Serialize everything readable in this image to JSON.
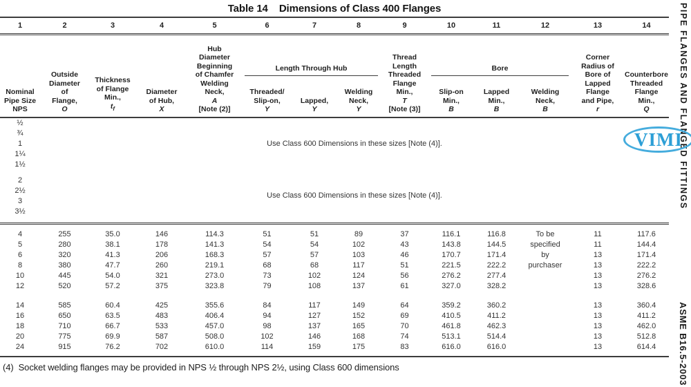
{
  "title": {
    "part1": "Table 14",
    "part2": "Dimensions of Class 400 Flanges"
  },
  "sidebar": {
    "top_text": "PIPE FLANGES AND FLANGED FITTINGS",
    "bottom_text": "ASME B16.5-2003"
  },
  "stamp": {
    "text": "VIMI",
    "color": "#2d9fd6",
    "ring_color": "#45acdd"
  },
  "footnote": "(4)  Socket welding flanges may be provided in NPS ½ through NPS 2½, using Class 600 dimensions",
  "table": {
    "column_numbers": [
      "1",
      "2",
      "3",
      "4",
      "5",
      "6",
      "7",
      "8",
      "9",
      "10",
      "11",
      "12",
      "13",
      "14"
    ],
    "group_headers": {
      "length_through_hub": "Length Through Hub",
      "bore": "Bore"
    },
    "headers": {
      "col1": {
        "text": "Nominal\nPipe Size\nNPS"
      },
      "col2": {
        "text": "Outside\nDiameter\nof\nFlange,",
        "sym": "O"
      },
      "col3": {
        "text": "Thickness\nof Flange\nMin.,",
        "sym": "t",
        "sub": "f"
      },
      "col4": {
        "text": "Diameter\nof Hub,",
        "sym": "X"
      },
      "col5": {
        "text": "Hub\nDiameter\nBeginning\nof Chamfer\nWelding\nNeck,",
        "sym": "A",
        "note": "[Note (2)]"
      },
      "col6": {
        "text": "Threaded/\nSlip-on,",
        "sym": "Y"
      },
      "col7": {
        "text": "Lapped,",
        "sym": "Y"
      },
      "col8": {
        "text": "Welding\nNeck,",
        "sym": "Y"
      },
      "col9": {
        "text": "Thread\nLength\nThreaded\nFlange\nMin.,",
        "sym": "T",
        "note": "[Note (3)]"
      },
      "col10": {
        "text": "Slip-on\nMin.,",
        "sym": "B"
      },
      "col11": {
        "text": "Lapped\nMin.,",
        "sym": "B"
      },
      "col12": {
        "text": "Welding\nNeck,",
        "sym": "B"
      },
      "col13": {
        "text": "Corner\nRadius of\nBore of\nLapped\nFlange\nand Pipe,",
        "sym": "r"
      },
      "col14": {
        "text": "Counterbore\nThreaded\nFlange\nMin.,",
        "sym": "Q"
      }
    },
    "class600_note": "Use Class 600 Dimensions in these sizes [Note (4)].",
    "nps_group_small": [
      "½",
      "¾",
      "1",
      "1¼",
      "1½"
    ],
    "nps_group_medium": [
      "2",
      "2½",
      "3",
      "3½"
    ],
    "rows_group1": [
      [
        "4",
        "255",
        "35.0",
        "146",
        "114.3",
        "51",
        "51",
        "89",
        "37",
        "116.1",
        "116.8",
        "To be",
        "11",
        "117.6"
      ],
      [
        "5",
        "280",
        "38.1",
        "178",
        "141.3",
        "54",
        "54",
        "102",
        "43",
        "143.8",
        "144.5",
        "specified",
        "11",
        "144.4"
      ],
      [
        "6",
        "320",
        "41.3",
        "206",
        "168.3",
        "57",
        "57",
        "103",
        "46",
        "170.7",
        "171.4",
        "by",
        "13",
        "171.4"
      ],
      [
        "8",
        "380",
        "47.7",
        "260",
        "219.1",
        "68",
        "68",
        "117",
        "51",
        "221.5",
        "222.2",
        "purchaser",
        "13",
        "222.2"
      ],
      [
        "10",
        "445",
        "54.0",
        "321",
        "273.0",
        "73",
        "102",
        "124",
        "56",
        "276.2",
        "277.4",
        "",
        "13",
        "276.2"
      ],
      [
        "12",
        "520",
        "57.2",
        "375",
        "323.8",
        "79",
        "108",
        "137",
        "61",
        "327.0",
        "328.2",
        "",
        "13",
        "328.6"
      ]
    ],
    "rows_group2": [
      [
        "14",
        "585",
        "60.4",
        "425",
        "355.6",
        "84",
        "117",
        "149",
        "64",
        "359.2",
        "360.2",
        "",
        "13",
        "360.4"
      ],
      [
        "16",
        "650",
        "63.5",
        "483",
        "406.4",
        "94",
        "127",
        "152",
        "69",
        "410.5",
        "411.2",
        "",
        "13",
        "411.2"
      ],
      [
        "18",
        "710",
        "66.7",
        "533",
        "457.0",
        "98",
        "137",
        "165",
        "70",
        "461.8",
        "462.3",
        "",
        "13",
        "462.0"
      ],
      [
        "20",
        "775",
        "69.9",
        "587",
        "508.0",
        "102",
        "146",
        "168",
        "74",
        "513.1",
        "514.4",
        "",
        "13",
        "512.8"
      ],
      [
        "24",
        "915",
        "76.2",
        "702",
        "610.0",
        "114",
        "159",
        "175",
        "83",
        "616.0",
        "616.0",
        "",
        "13",
        "614.4"
      ]
    ]
  }
}
